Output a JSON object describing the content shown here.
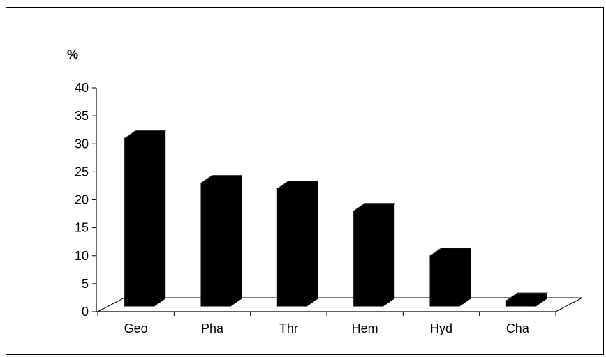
{
  "chart_data": {
    "type": "bar",
    "title": "",
    "xlabel": "",
    "ylabel": "%",
    "categories": [
      "Geo",
      "Pha",
      "Thr",
      "Hem",
      "Hyd",
      "Cha"
    ],
    "values": [
      30,
      22,
      21,
      17,
      9,
      1
    ],
    "ylim": [
      0,
      40
    ],
    "yticks": [
      "0",
      "5",
      "10",
      "15",
      "20",
      "25",
      "30",
      "35",
      "40"
    ],
    "grid": false,
    "legend": "none",
    "style": "3d",
    "bar_color": "#000000",
    "axis_color": "#000000",
    "background": "#ffffff"
  }
}
